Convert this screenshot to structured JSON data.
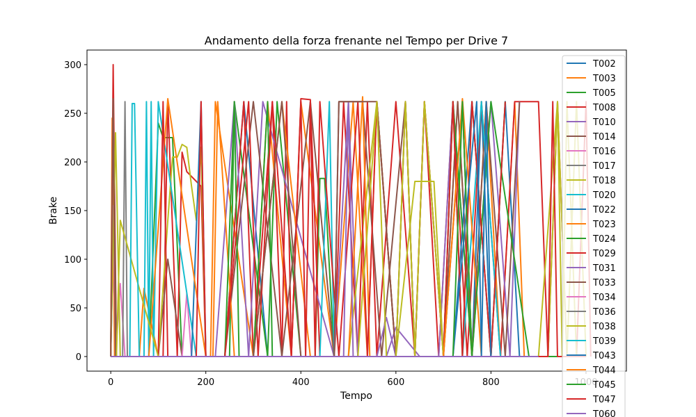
{
  "chart_data": {
    "type": "line",
    "title": "Andamento della forza frenante nel Tempo per Drive 7",
    "xlabel": "Tempo",
    "ylabel": "Brake",
    "xlim": [
      -50,
      1085
    ],
    "ylim": [
      -15,
      315
    ],
    "xticks": [
      0,
      200,
      400,
      600,
      800,
      1000
    ],
    "yticks": [
      0,
      50,
      100,
      150,
      200,
      250,
      300
    ],
    "xtick_labels": [
      "0",
      "200",
      "400",
      "600",
      "800",
      "1000"
    ],
    "ytick_labels": [
      "0",
      "50",
      "100",
      "150",
      "200",
      "250",
      "300"
    ],
    "grid": false,
    "legend_position": "right",
    "series": [
      {
        "name": "T002",
        "color": "#1f77b4",
        "x": [
          0,
          5,
          10,
          30,
          40,
          120,
          150,
          190,
          205,
          240,
          280,
          330,
          380,
          420,
          470,
          520,
          560,
          620,
          660,
          700,
          740,
          760,
          780,
          800,
          830,
          860
        ],
        "values": [
          0,
          110,
          0,
          0,
          0,
          0,
          0,
          0,
          0,
          0,
          262,
          0,
          0,
          0,
          0,
          0,
          0,
          0,
          0,
          0,
          262,
          0,
          262,
          0,
          262,
          0
        ]
      },
      {
        "name": "T003",
        "color": "#ff7f0e",
        "x": [
          0,
          3,
          8,
          60,
          70,
          100,
          160,
          210,
          220,
          300,
          330,
          380,
          400,
          470,
          510,
          540,
          560,
          600,
          650,
          700,
          730,
          760,
          790,
          820,
          850,
          870
        ],
        "values": [
          0,
          245,
          0,
          0,
          70,
          0,
          0,
          0,
          262,
          0,
          262,
          0,
          262,
          0,
          262,
          0,
          262,
          0,
          0,
          0,
          262,
          0,
          262,
          0,
          262,
          0
        ]
      },
      {
        "name": "T005",
        "color": "#2ca02c",
        "x": [
          0,
          10,
          80,
          100,
          110,
          130,
          150,
          250,
          260,
          330,
          350,
          400,
          430,
          440,
          450,
          470,
          480,
          520,
          580,
          660,
          700,
          720,
          740,
          760,
          800,
          830
        ],
        "values": [
          0,
          0,
          0,
          240,
          225,
          225,
          0,
          0,
          262,
          0,
          262,
          0,
          0,
          183,
          183,
          0,
          0,
          0,
          0,
          0,
          0,
          262,
          0,
          262,
          0,
          262
        ]
      },
      {
        "name": "T008",
        "color": "#d62728",
        "x": [
          0,
          5,
          12,
          60,
          110,
          120,
          140,
          150,
          160,
          190,
          200,
          240,
          280,
          300,
          340,
          360,
          370,
          380,
          400,
          420,
          440,
          470,
          490,
          520,
          540,
          560,
          600,
          640,
          660,
          690,
          720,
          750,
          780,
          820,
          850,
          880,
          900,
          920,
          940,
          960,
          980,
          1000,
          1010
        ],
        "values": [
          0,
          300,
          0,
          0,
          0,
          262,
          0,
          210,
          190,
          175,
          0,
          0,
          262,
          0,
          262,
          0,
          262,
          0,
          265,
          264,
          0,
          0,
          262,
          0,
          262,
          0,
          262,
          0,
          262,
          0,
          262,
          0,
          262,
          0,
          262,
          262,
          262,
          0,
          262,
          0,
          0,
          262,
          0
        ]
      },
      {
        "name": "T010",
        "color": "#9467bd",
        "x": [
          0,
          60,
          90,
          130,
          220,
          260,
          290,
          320,
          470,
          500,
          520,
          580,
          600,
          650,
          690,
          720,
          760,
          800,
          840,
          860
        ],
        "values": [
          0,
          0,
          0,
          0,
          0,
          262,
          0,
          262,
          0,
          262,
          0,
          0,
          30,
          0,
          0,
          262,
          0,
          262,
          0,
          262
        ]
      },
      {
        "name": "T014",
        "color": "#8c564b",
        "x": [
          0,
          5,
          12,
          40,
          100,
          120,
          150,
          240,
          300,
          360,
          420,
          470,
          480,
          530,
          570,
          620,
          640,
          660,
          700,
          730,
          760,
          790,
          830,
          860
        ],
        "values": [
          0,
          265,
          0,
          0,
          0,
          100,
          0,
          0,
          262,
          0,
          262,
          0,
          262,
          262,
          0,
          262,
          0,
          262,
          0,
          262,
          0,
          262,
          0,
          262
        ]
      },
      {
        "name": "T016",
        "color": "#e377c2",
        "x": [
          0,
          5,
          10,
          20,
          30,
          60,
          110,
          150,
          160,
          170,
          260,
          300,
          390,
          420,
          510,
          560,
          620,
          680,
          760,
          800
        ],
        "values": [
          0,
          155,
          0,
          75,
          0,
          0,
          0,
          0,
          65,
          0,
          0,
          0,
          0,
          0,
          0,
          0,
          0,
          0,
          0,
          0
        ]
      },
      {
        "name": "T017",
        "color": "#7f7f7f",
        "x": [
          0,
          10,
          25,
          30,
          35,
          40,
          90,
          120,
          170,
          240,
          300,
          380,
          460,
          540,
          620,
          700,
          780,
          860
        ],
        "values": [
          0,
          0,
          0,
          262,
          0,
          0,
          0,
          0,
          0,
          0,
          0,
          0,
          0,
          0,
          0,
          0,
          0,
          0
        ]
      },
      {
        "name": "T018",
        "color": "#bcbd22",
        "x": [
          0,
          10,
          20,
          60,
          100,
          120,
          130,
          140,
          150,
          160,
          170,
          180,
          190,
          200,
          230,
          260,
          300,
          360,
          420,
          500,
          560,
          600,
          640,
          680,
          700,
          740,
          780,
          900,
          940,
          960,
          980,
          1000
        ],
        "values": [
          0,
          230,
          0,
          0,
          0,
          140,
          205,
          205,
          218,
          215,
          175,
          140,
          215,
          0,
          0,
          0,
          0,
          0,
          0,
          0,
          262,
          0,
          180,
          180,
          0,
          0,
          0,
          0,
          262,
          0,
          262,
          0
        ]
      },
      {
        "name": "T020",
        "color": "#17becf",
        "x": [
          0,
          60,
          70,
          75,
          80,
          85,
          90,
          100,
          180,
          240,
          300,
          340,
          380,
          440,
          460,
          470,
          480,
          560,
          600,
          680,
          740,
          780,
          820,
          900
        ],
        "values": [
          0,
          0,
          0,
          262,
          0,
          262,
          0,
          262,
          0,
          0,
          0,
          0,
          0,
          0,
          262,
          0,
          0,
          0,
          0,
          0,
          0,
          262,
          0,
          0
        ]
      },
      {
        "name": "T022",
        "color": "#1f77b4",
        "x": [
          0,
          40,
          60,
          80,
          100,
          130,
          170,
          190,
          200,
          260,
          300,
          340,
          420,
          460,
          500,
          560,
          620,
          680,
          720,
          760,
          800,
          840,
          900
        ],
        "values": [
          0,
          0,
          0,
          0,
          0,
          0,
          0,
          262,
          0,
          0,
          0,
          0,
          0,
          0,
          0,
          0,
          0,
          0,
          0,
          262,
          0,
          0,
          0
        ]
      },
      {
        "name": "T023",
        "color": "#ff7f0e",
        "x": [
          0,
          5,
          10,
          60,
          80,
          120,
          200,
          215,
          225,
          260,
          300,
          360,
          420,
          500,
          530,
          545,
          560,
          620,
          660,
          700,
          740,
          780,
          820,
          860
        ],
        "values": [
          0,
          255,
          0,
          0,
          0,
          265,
          0,
          0,
          262,
          0,
          0,
          262,
          0,
          0,
          267,
          0,
          0,
          0,
          0,
          0,
          265,
          0,
          0,
          0
        ]
      },
      {
        "name": "T024",
        "color": "#2ca02c",
        "x": [
          0,
          80,
          160,
          240,
          260,
          270,
          300,
          330,
          340,
          400,
          460,
          520,
          580,
          640,
          700,
          720,
          760,
          800,
          880,
          960,
          1000
        ],
        "values": [
          0,
          0,
          0,
          0,
          262,
          0,
          0,
          262,
          0,
          0,
          0,
          0,
          0,
          0,
          0,
          262,
          0,
          262,
          0,
          0,
          0
        ]
      },
      {
        "name": "T029",
        "color": "#d62728",
        "x": [
          0,
          10,
          20,
          100,
          110,
          120,
          180,
          190,
          200,
          240,
          290,
          310,
          340,
          380,
          400,
          410,
          420,
          430,
          440,
          480,
          520,
          540,
          560,
          600,
          620,
          640,
          660,
          700,
          720,
          740,
          760,
          800,
          830
        ],
        "values": [
          0,
          0,
          0,
          0,
          262,
          0,
          0,
          262,
          0,
          0,
          262,
          0,
          262,
          0,
          262,
          0,
          262,
          0,
          262,
          0,
          262,
          0,
          262,
          0,
          262,
          0,
          262,
          0,
          262,
          0,
          262,
          0,
          262
        ]
      },
      {
        "name": "T031",
        "color": "#9467bd",
        "x": [
          0,
          60,
          140,
          200,
          250,
          280,
          300,
          380,
          430,
          490,
          500,
          510,
          560,
          580,
          600,
          640,
          700,
          760,
          820,
          880
        ],
        "values": [
          0,
          0,
          0,
          0,
          0,
          0,
          0,
          0,
          0,
          0,
          262,
          0,
          0,
          40,
          0,
          0,
          0,
          0,
          0,
          0
        ]
      },
      {
        "name": "T033",
        "color": "#8c564b",
        "x": [
          0,
          5,
          10,
          100,
          150,
          220,
          300,
          360,
          400,
          440,
          470,
          480,
          490,
          500,
          520,
          540,
          560,
          600,
          620,
          640,
          680,
          720,
          760
        ],
        "values": [
          0,
          262,
          0,
          0,
          0,
          0,
          0,
          262,
          0,
          0,
          0,
          262,
          262,
          262,
          262,
          262,
          262,
          0,
          262,
          0,
          0,
          0,
          0
        ]
      },
      {
        "name": "T034",
        "color": "#e377c2",
        "x": [
          0,
          60,
          140,
          220,
          300,
          380,
          460,
          540,
          620,
          700,
          780,
          860
        ],
        "values": [
          0,
          0,
          0,
          0,
          0,
          0,
          0,
          0,
          0,
          0,
          0,
          0
        ]
      },
      {
        "name": "T036",
        "color": "#7f7f7f",
        "x": [
          0,
          20,
          40,
          60,
          80,
          100,
          140,
          200,
          260,
          320,
          380,
          440,
          500,
          560,
          620,
          680,
          740,
          800
        ],
        "values": [
          0,
          0,
          0,
          0,
          0,
          0,
          0,
          0,
          0,
          0,
          0,
          0,
          0,
          0,
          0,
          0,
          0,
          0
        ]
      },
      {
        "name": "T038",
        "color": "#bcbd22",
        "x": [
          0,
          5,
          12,
          20,
          100,
          110,
          120,
          180,
          200,
          240,
          280,
          300,
          320,
          360,
          400,
          460,
          520,
          560,
          580,
          600,
          620,
          640,
          660,
          700,
          740,
          780,
          820,
          860,
          900,
          920,
          940,
          950,
          960,
          980,
          1000
        ],
        "values": [
          0,
          0,
          0,
          140,
          0,
          0,
          0,
          0,
          0,
          0,
          0,
          0,
          0,
          0,
          0,
          0,
          0,
          262,
          0,
          0,
          262,
          0,
          262,
          0,
          0,
          0,
          0,
          0,
          0,
          0,
          262,
          0,
          262,
          0,
          0
        ]
      },
      {
        "name": "T039",
        "color": "#17becf",
        "x": [
          0,
          20,
          40,
          45,
          50,
          60,
          100,
          160,
          220,
          280,
          340,
          400,
          460,
          520,
          580,
          640,
          700,
          760,
          820
        ],
        "values": [
          0,
          0,
          0,
          260,
          260,
          0,
          0,
          0,
          0,
          0,
          0,
          0,
          0,
          0,
          0,
          0,
          0,
          0,
          0
        ]
      },
      {
        "name": "T043",
        "color": "#1f77b4",
        "x": [
          0,
          80,
          160,
          240,
          320,
          400,
          480,
          560,
          640,
          720,
          770,
          780,
          790,
          800,
          820,
          880
        ],
        "values": [
          0,
          0,
          0,
          0,
          0,
          0,
          0,
          0,
          0,
          0,
          262,
          0,
          262,
          0,
          0,
          0
        ]
      },
      {
        "name": "T044",
        "color": "#ff7f0e",
        "x": [
          0,
          60,
          120,
          180,
          240,
          300,
          380,
          450,
          520,
          600,
          660,
          700,
          740,
          760,
          780,
          800
        ],
        "values": [
          0,
          0,
          0,
          0,
          0,
          0,
          0,
          0,
          0,
          0,
          0,
          0,
          262,
          0,
          0,
          0
        ]
      },
      {
        "name": "T045",
        "color": "#2ca02c",
        "x": [
          0,
          100,
          200,
          300,
          400,
          500,
          600,
          700,
          720,
          740,
          760,
          800,
          900
        ],
        "values": [
          0,
          0,
          0,
          0,
          0,
          0,
          0,
          0,
          0,
          262,
          0,
          0,
          0
        ]
      },
      {
        "name": "T047",
        "color": "#d62728",
        "x": [
          0,
          100,
          200,
          300,
          400,
          500,
          600,
          700,
          800,
          860,
          900,
          920,
          930,
          940,
          960,
          980,
          1000
        ],
        "values": [
          0,
          0,
          0,
          0,
          0,
          0,
          0,
          0,
          0,
          0,
          0,
          0,
          262,
          0,
          0,
          0,
          0
        ]
      },
      {
        "name": "T060",
        "color": "#9467bd",
        "x": [
          0,
          100,
          200,
          300,
          400,
          500,
          600,
          700,
          800,
          900
        ],
        "values": [
          0,
          0,
          0,
          0,
          0,
          0,
          0,
          0,
          0,
          0
        ]
      }
    ]
  }
}
